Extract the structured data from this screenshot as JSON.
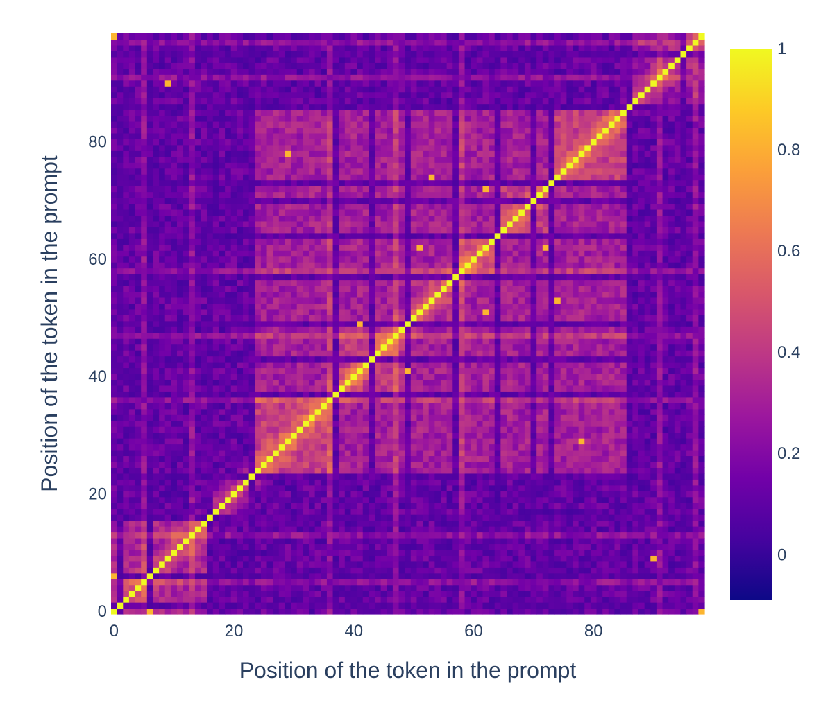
{
  "chart_data": {
    "type": "heatmap",
    "title": "",
    "xlabel": "Position of the token in the prompt",
    "ylabel": "Position of the token in the prompt",
    "n": 99,
    "x_range": [
      0,
      98
    ],
    "y_range": [
      0,
      98
    ],
    "x_ticks": [
      {
        "value": 0,
        "label": "0"
      },
      {
        "value": 20,
        "label": "20"
      },
      {
        "value": 40,
        "label": "40"
      },
      {
        "value": 60,
        "label": "60"
      },
      {
        "value": 80,
        "label": "80"
      }
    ],
    "y_ticks": [
      {
        "value": 0,
        "label": "0"
      },
      {
        "value": 20,
        "label": "20"
      },
      {
        "value": 40,
        "label": "40"
      },
      {
        "value": 60,
        "label": "60"
      },
      {
        "value": 80,
        "label": "80"
      }
    ],
    "colorbar": {
      "min": -0.09,
      "max": 1.0,
      "ticks": [
        {
          "value": 0,
          "label": "0"
        },
        {
          "value": 0.2,
          "label": "0.2"
        },
        {
          "value": 0.4,
          "label": "0.4"
        },
        {
          "value": 0.6,
          "label": "0.6"
        },
        {
          "value": 0.8,
          "label": "0.8"
        },
        {
          "value": 1,
          "label": "1"
        }
      ],
      "colorscale": [
        "#0d0887",
        "#46039f",
        "#7201a8",
        "#9c179e",
        "#bd3786",
        "#d8576b",
        "#ed7953",
        "#fb9f3a",
        "#fdca26",
        "#f0f921"
      ]
    },
    "grid": false,
    "legend": "none",
    "structure": {
      "diagonal_value": 1.0,
      "background_value": 0.12,
      "block_segments": [
        {
          "start": 0,
          "end": 15,
          "level": 0.32
        },
        {
          "start": 16,
          "end": 22,
          "level": 0.2
        },
        {
          "start": 23,
          "end": 36,
          "level": 0.42
        },
        {
          "start": 37,
          "end": 48,
          "level": 0.4
        },
        {
          "start": 49,
          "end": 56,
          "level": 0.36
        },
        {
          "start": 57,
          "end": 63,
          "level": 0.38
        },
        {
          "start": 64,
          "end": 72,
          "level": 0.4
        },
        {
          "start": 73,
          "end": 85,
          "level": 0.42
        },
        {
          "start": 86,
          "end": 98,
          "level": 0.26
        }
      ],
      "cross_block_level": 0.3,
      "dark_bands": [
        1,
        6,
        16,
        23,
        37,
        43,
        49,
        57,
        64,
        70,
        73,
        86,
        95
      ],
      "bright_bands": [
        5,
        13,
        36,
        47,
        58,
        91,
        97
      ],
      "bright_cells": [
        [
          0,
          6
        ],
        [
          6,
          0
        ],
        [
          98,
          0
        ],
        [
          0,
          98
        ],
        [
          9,
          90
        ],
        [
          90,
          9
        ],
        [
          29,
          78
        ],
        [
          78,
          29
        ],
        [
          51,
          62
        ],
        [
          62,
          51
        ],
        [
          62,
          72
        ],
        [
          72,
          62
        ],
        [
          53,
          74
        ],
        [
          74,
          53
        ],
        [
          41,
          49
        ],
        [
          49,
          41
        ]
      ]
    }
  }
}
